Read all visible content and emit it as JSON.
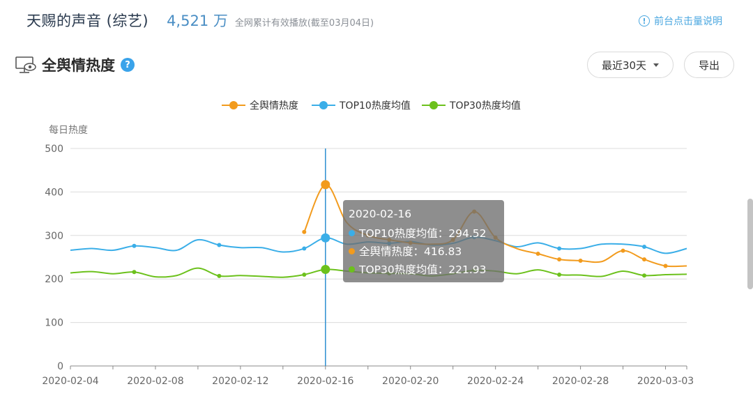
{
  "header": {
    "show_title": "天赐的声音 (综艺)",
    "play_count": "4,521 万",
    "play_desc": "全网累计有效播放(截至03月04日)",
    "help_link": "前台点击量说明",
    "help_icon": "info-icon"
  },
  "section": {
    "title": "全舆情热度",
    "icon": "monitor-eye-icon",
    "help_icon": "question-icon",
    "range_label": "最近30天",
    "export_label": "导出"
  },
  "tooltip": {
    "date": "2020-02-16",
    "rows": [
      {
        "label": "TOP10热度均值：294.52",
        "color": "#3aaee8"
      },
      {
        "label": "全舆情热度：416.83",
        "color": "#f29b1d"
      },
      {
        "label": "TOP30热度均值：221.93",
        "color": "#6cc11c"
      }
    ]
  },
  "chart_data": {
    "type": "line",
    "ylabel": "每日热度",
    "ylim": [
      0,
      500
    ],
    "yticks": [
      0,
      100,
      200,
      300,
      400,
      500
    ],
    "x": [
      "2020-02-04",
      "2020-02-05",
      "2020-02-06",
      "2020-02-07",
      "2020-02-08",
      "2020-02-09",
      "2020-02-10",
      "2020-02-11",
      "2020-02-12",
      "2020-02-13",
      "2020-02-14",
      "2020-02-15",
      "2020-02-16",
      "2020-02-17",
      "2020-02-18",
      "2020-02-19",
      "2020-02-20",
      "2020-02-21",
      "2020-02-22",
      "2020-02-23",
      "2020-02-24",
      "2020-02-25",
      "2020-02-26",
      "2020-02-27",
      "2020-02-28",
      "2020-02-29",
      "2020-03-01",
      "2020-03-02",
      "2020-03-03",
      "2020-03-04"
    ],
    "xticks": [
      "2020-02-04",
      "2020-02-08",
      "2020-02-12",
      "2020-02-16",
      "2020-02-20",
      "2020-02-24",
      "2020-02-28",
      "2020-03-03"
    ],
    "highlight_x": "2020-02-16",
    "series": [
      {
        "name": "全舆情热度",
        "color": "#f29b1d",
        "values": [
          null,
          null,
          null,
          null,
          null,
          null,
          null,
          null,
          null,
          null,
          null,
          308,
          416.83,
          330,
          300,
          290,
          283,
          280,
          290,
          355,
          295,
          270,
          258,
          245,
          242,
          240,
          265,
          245,
          230,
          230
        ]
      },
      {
        "name": "TOP10热度均值",
        "color": "#3aaee8",
        "values": [
          266,
          270,
          266,
          276,
          272,
          266,
          290,
          278,
          272,
          272,
          262,
          270,
          294.52,
          280,
          285,
          282,
          286,
          278,
          282,
          296,
          288,
          274,
          283,
          270,
          270,
          280,
          280,
          274,
          259,
          270
        ]
      },
      {
        "name": "TOP30热度均值",
        "color": "#6cc11c",
        "values": [
          214,
          217,
          212,
          216,
          205,
          208,
          225,
          207,
          208,
          206,
          204,
          210,
          221.93,
          218,
          214,
          213,
          212,
          207,
          212,
          220,
          218,
          212,
          221,
          210,
          209,
          206,
          218,
          208,
          210,
          211
        ]
      }
    ]
  }
}
